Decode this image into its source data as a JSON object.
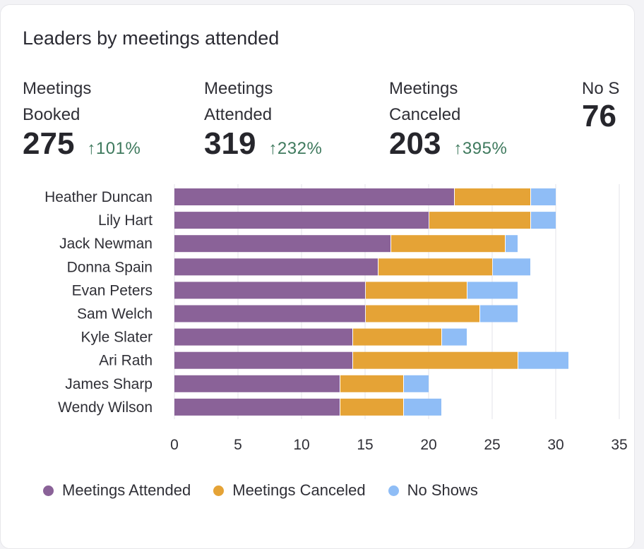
{
  "card": {
    "title": "Leaders by meetings attended"
  },
  "kpis": [
    {
      "label_1": "Meetings",
      "label_2": "Booked",
      "value": "275",
      "change": "101%",
      "direction": "up"
    },
    {
      "label_1": "Meetings",
      "label_2": "Attended",
      "value": "319",
      "change": "232%",
      "direction": "up"
    },
    {
      "label_1": "Meetings",
      "label_2": "Canceled",
      "value": "203",
      "change": "395%",
      "direction": "up"
    },
    {
      "label_1": "No S",
      "label_2": "",
      "value": "76",
      "change": "",
      "direction": ""
    }
  ],
  "chart_data": {
    "type": "bar",
    "orientation": "horizontal",
    "stacked": true,
    "categories": [
      "Heather Duncan",
      "Lily Hart",
      "Jack Newman",
      "Donna Spain",
      "Evan Peters",
      "Sam Welch",
      "Kyle Slater",
      "Ari Rath",
      "James Sharp",
      "Wendy Wilson"
    ],
    "series": [
      {
        "name": "Meetings Attended",
        "color": "#8a6298",
        "values": [
          22,
          20,
          17,
          16,
          15,
          15,
          14,
          14,
          13,
          13
        ]
      },
      {
        "name": "Meetings Canceled",
        "color": "#e5a336",
        "values": [
          6,
          8,
          9,
          9,
          8,
          9,
          7,
          13,
          5,
          5
        ]
      },
      {
        "name": "No Shows",
        "color": "#8fbdf6",
        "values": [
          2,
          2,
          1,
          3,
          4,
          3,
          2,
          4,
          2,
          3
        ]
      }
    ],
    "xlim": [
      0,
      35
    ],
    "xticks": [
      "0",
      "5",
      "10",
      "15",
      "20",
      "25",
      "30",
      "35"
    ],
    "grid": true,
    "legend": "bottom"
  }
}
